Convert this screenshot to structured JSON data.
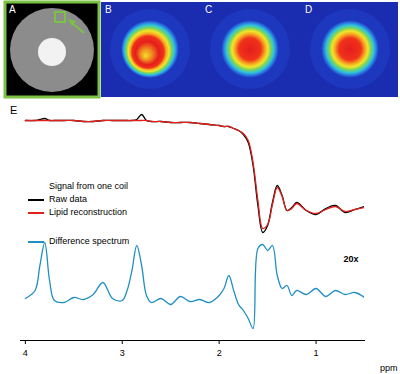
{
  "panels": {
    "labels": [
      "A",
      "B",
      "C",
      "D"
    ]
  },
  "chart_data": {
    "type": "line",
    "panel_label": "E",
    "legend_title": "Signal from one coil",
    "x": [
      4.0,
      3.9,
      3.85,
      3.8,
      3.75,
      3.7,
      3.6,
      3.5,
      3.4,
      3.3,
      3.2,
      3.1,
      3.0,
      2.95,
      2.9,
      2.85,
      2.8,
      2.75,
      2.7,
      2.6,
      2.5,
      2.4,
      2.3,
      2.2,
      2.1,
      2.0,
      1.95,
      1.9,
      1.85,
      1.8,
      1.75,
      1.7,
      1.65,
      1.6,
      1.55,
      1.5,
      1.45,
      1.4,
      1.35,
      1.3,
      1.25,
      1.2,
      1.1,
      1.0,
      0.9,
      0.8,
      0.7,
      0.6,
      0.5
    ],
    "series": [
      {
        "name": "Raw data",
        "color": "#000000",
        "values": [
          22.0,
          22.0,
          22.1,
          22.2,
          22.0,
          22.0,
          22.0,
          22.0,
          21.9,
          21.9,
          22.0,
          22.0,
          22.0,
          22.0,
          22.0,
          22.1,
          22.6,
          22.0,
          21.9,
          21.9,
          21.8,
          21.8,
          21.8,
          21.7,
          21.6,
          21.5,
          21.4,
          21.4,
          21.2,
          21.0,
          20.6,
          19.8,
          17.5,
          13.5,
          10.8,
          11.5,
          13.8,
          15.5,
          14.5,
          13.0,
          13.3,
          13.8,
          13.0,
          12.6,
          13.2,
          13.5,
          12.8,
          13.1,
          13.4
        ]
      },
      {
        "name": "Lipid reconstruction",
        "color": "#e0201b",
        "values": [
          22.0,
          22.0,
          22.0,
          22.0,
          22.0,
          22.0,
          22.0,
          22.0,
          21.9,
          21.9,
          22.0,
          22.0,
          22.0,
          22.0,
          22.0,
          22.0,
          22.0,
          22.0,
          21.9,
          21.9,
          21.8,
          21.8,
          21.8,
          21.7,
          21.6,
          21.5,
          21.4,
          21.4,
          21.2,
          21.0,
          20.7,
          20.0,
          17.8,
          14.0,
          11.2,
          11.6,
          13.6,
          15.3,
          14.4,
          13.0,
          13.2,
          13.7,
          13.0,
          12.7,
          13.1,
          13.4,
          12.9,
          13.1,
          13.3
        ]
      },
      {
        "name": "Difference spectrum",
        "color": "#1f8fc4",
        "values": [
          4.2,
          5.0,
          7.5,
          9.8,
          6.0,
          4.0,
          3.8,
          4.3,
          4.1,
          4.6,
          5.8,
          4.2,
          4.0,
          5.0,
          7.0,
          9.5,
          7.5,
          4.5,
          3.8,
          4.2,
          3.6,
          4.4,
          3.9,
          4.1,
          3.8,
          4.5,
          5.2,
          6.5,
          5.0,
          3.6,
          3.0,
          2.2,
          1.2,
          9.2,
          9.6,
          9.0,
          9.5,
          6.5,
          5.2,
          5.5,
          4.5,
          5.0,
          4.6,
          5.2,
          4.4,
          5.0,
          4.6,
          4.8,
          4.3
        ]
      }
    ],
    "xlim": [
      4.05,
      0.5
    ],
    "xticks": [
      4,
      3,
      2,
      1
    ],
    "ylim": [
      0,
      23
    ],
    "xlabel": "ppm",
    "annotations": [
      "20x"
    ],
    "tick_labels": "x"
  }
}
